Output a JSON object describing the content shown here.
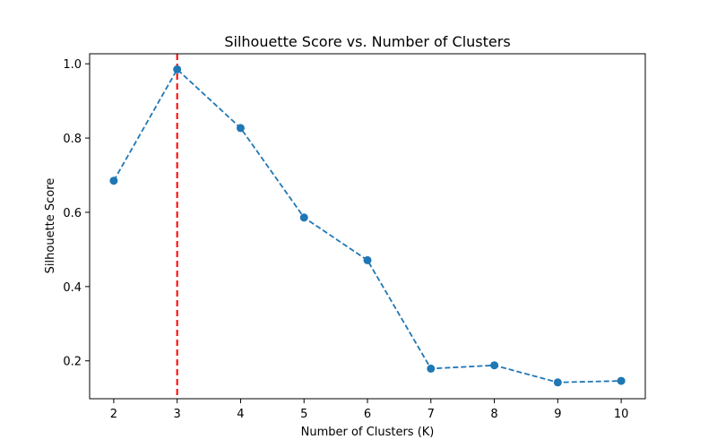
{
  "chart_data": {
    "type": "line",
    "title": "Silhouette Score vs. Number of Clusters",
    "xlabel": "Number of Clusters (K)",
    "ylabel": "Silhouette Score",
    "x": [
      2,
      3,
      4,
      5,
      6,
      7,
      8,
      9,
      10
    ],
    "series": [
      {
        "values": [
          0.685,
          0.985,
          0.827,
          0.586,
          0.471,
          0.179,
          0.188,
          0.142,
          0.146
        ],
        "color": "#1f77b4",
        "line_style": "dashed",
        "marker": "circle"
      }
    ],
    "xlim": [
      1.62,
      10.38
    ],
    "ylim": [
      0.098,
      1.027
    ],
    "xticks": [
      "2",
      "3",
      "4",
      "5",
      "6",
      "7",
      "8",
      "9",
      "10"
    ],
    "yticks": [
      "0.2",
      "0.4",
      "0.6",
      "0.8",
      "1.0"
    ],
    "ytick_values": [
      0.2,
      0.4,
      0.6,
      0.8,
      1.0
    ],
    "reference_line": {
      "x": 3,
      "color": "#ff0000",
      "line_style": "dashed"
    },
    "grid": false,
    "legend": "none"
  }
}
